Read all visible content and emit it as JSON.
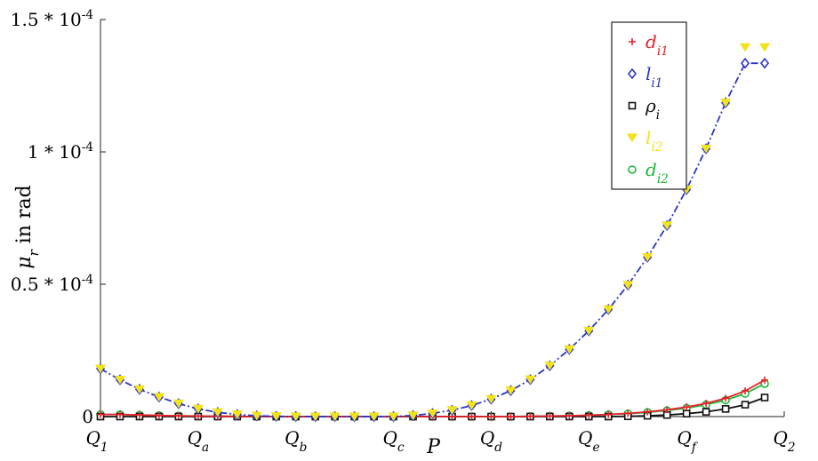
{
  "chart_data": {
    "type": "line",
    "xlabel": "P",
    "ylabel": "μr in rad",
    "x_ticks": [
      "Q1",
      "Qa",
      "Qb",
      "Qc",
      "Qd",
      "Qe",
      "Qf",
      "Q2"
    ],
    "y_ticks": [
      {
        "value": 0,
        "label": "0"
      },
      {
        "value": 5e-05,
        "label": "0.5 * 10^-4"
      },
      {
        "value": 0.0001,
        "label": "1 * 10^-4"
      },
      {
        "value": 0.00015,
        "label": "1.5 * 10^-4"
      }
    ],
    "xlim": [
      0,
      7
    ],
    "ylim": [
      0,
      0.00015
    ],
    "grid": false,
    "legend_position": "top-right",
    "x": [
      0,
      0.2,
      0.4,
      0.6,
      0.8,
      1,
      1.2,
      1.4,
      1.6,
      1.8,
      2,
      2.2,
      2.4,
      2.6,
      2.8,
      3,
      3.2,
      3.4,
      3.6,
      3.8,
      4,
      4.2,
      4.4,
      4.6,
      4.8,
      5,
      5.2,
      5.4,
      5.6,
      5.8,
      6,
      6.2,
      6.4,
      6.6,
      6.8
    ],
    "series": [
      {
        "name": "d_i1",
        "color": "#e8202a",
        "marker": "plus",
        "line": "solid",
        "values": [
          8e-07,
          8e-07,
          6e-07,
          4e-07,
          3e-07,
          2e-07,
          1e-07,
          1e-07,
          0,
          0,
          0,
          0,
          0,
          0,
          0,
          0,
          0,
          0,
          0,
          0,
          0,
          0,
          1e-07,
          2e-07,
          3e-07,
          5e-07,
          8e-07,
          1.2e-06,
          1.8e-06,
          2.6e-06,
          3.6e-06,
          5e-06,
          6.9e-06,
          9.7e-06,
          1.38e-05
        ]
      },
      {
        "name": "l_i1",
        "color": "#2b36c4",
        "marker": "diamond",
        "line": "dashdot",
        "values": [
          1.81e-05,
          1.39e-05,
          1.03e-05,
          7.4e-06,
          4.9e-06,
          2.9e-06,
          1.6e-06,
          8e-07,
          3e-07,
          1e-07,
          0,
          0,
          0,
          0,
          0,
          0,
          4e-07,
          1.2e-06,
          2.4e-06,
          4.2e-06,
          6.6e-06,
          9.8e-06,
          1.4e-05,
          1.92e-05,
          2.54e-05,
          3.24e-05,
          4.05e-05,
          4.97e-05,
          6.02e-05,
          7.22e-05,
          8.58e-05,
          0.0001012,
          0.0001186,
          0.0001335,
          0.0001335
        ]
      },
      {
        "name": "ρ_i",
        "color": "#111111",
        "marker": "square",
        "line": "solid",
        "values": [
          0,
          0,
          0,
          0,
          0,
          0,
          0,
          0,
          0,
          0,
          0,
          0,
          0,
          0,
          0,
          0,
          0,
          0,
          0,
          0,
          0,
          0,
          0,
          0,
          0,
          0,
          0,
          1e-07,
          3e-07,
          6e-07,
          1.1e-06,
          1.8e-06,
          2.9e-06,
          4.5e-06,
          7.2e-06
        ]
      },
      {
        "name": "l_i2",
        "color": "#f2e21a",
        "marker": "triangle-down",
        "line": "none",
        "values": [
          1.81e-05,
          1.39e-05,
          1.03e-05,
          7.4e-06,
          4.9e-06,
          2.9e-06,
          1.6e-06,
          8e-07,
          3e-07,
          1e-07,
          0,
          0,
          0,
          0,
          0,
          0,
          4e-07,
          1.2e-06,
          2.4e-06,
          4.2e-06,
          6.6e-06,
          9.8e-06,
          1.4e-05,
          1.92e-05,
          2.54e-05,
          3.24e-05,
          4.05e-05,
          4.97e-05,
          6.02e-05,
          7.22e-05,
          8.58e-05,
          0.0001012,
          0.0001186,
          0.0001395,
          0.0001395
        ]
      },
      {
        "name": "d_i2",
        "color": "#1fb83a",
        "marker": "circle",
        "line": "solid",
        "values": [
          8e-07,
          8e-07,
          6e-07,
          4e-07,
          3e-07,
          2e-07,
          1e-07,
          1e-07,
          0,
          0,
          0,
          0,
          0,
          0,
          0,
          0,
          0,
          0,
          0,
          0,
          0,
          0,
          1e-07,
          2e-07,
          3e-07,
          5e-07,
          8e-07,
          1.1e-06,
          1.6e-06,
          2.3e-06,
          3.2e-06,
          4.5e-06,
          6.2e-06,
          8.7e-06,
          1.24e-05
        ]
      }
    ]
  }
}
